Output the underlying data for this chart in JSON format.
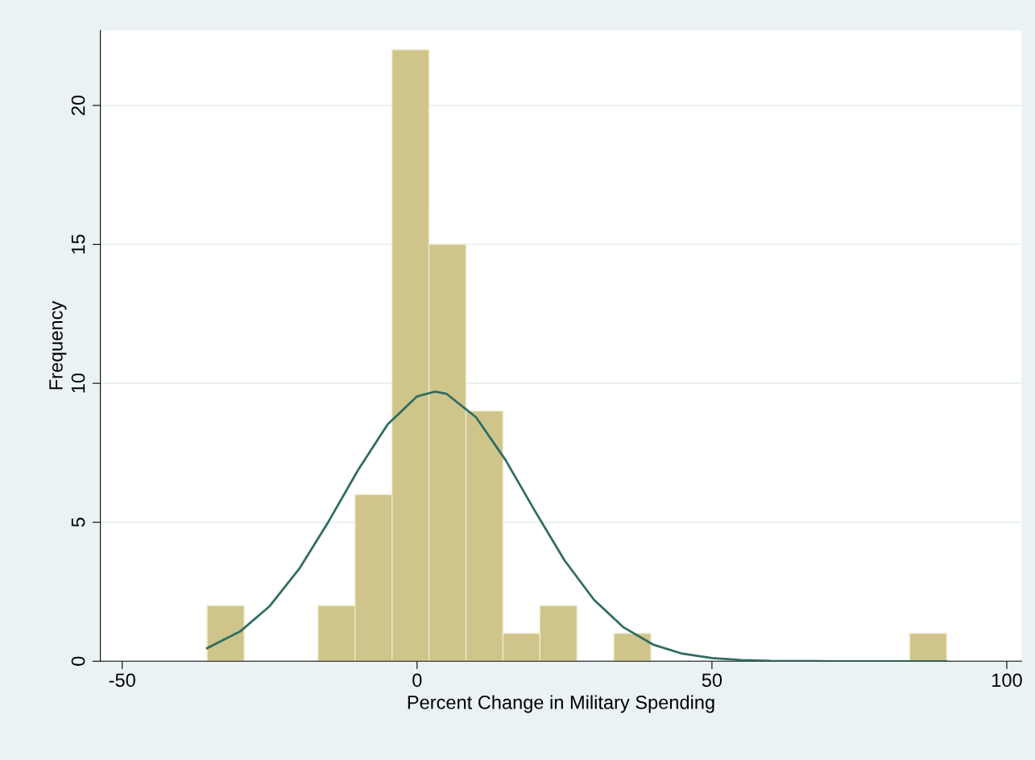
{
  "chart_data": {
    "type": "histogram",
    "xlabel": "Percent Change in Military Spending",
    "ylabel": "Frequency",
    "series": [
      {
        "color": "#cfc48a",
        "bins": [
          -35.6,
          -29.33,
          -23.06,
          -16.79,
          -10.52,
          -4.25,
          2.02,
          8.29,
          14.56,
          20.83,
          27.1,
          33.37,
          39.64,
          45.91,
          52.18,
          58.45,
          64.72,
          70.99,
          77.26,
          83.53,
          89.8
        ],
        "values": [
          2,
          0,
          0,
          2,
          6,
          22,
          15,
          9,
          1,
          2,
          0,
          1,
          0,
          0,
          0,
          0,
          0,
          0,
          0,
          1
        ]
      },
      {
        "type": "line",
        "color": "#2f6d63",
        "x": [
          -35.6,
          -30,
          -25,
          -20,
          -15,
          -10,
          -5,
          0,
          3,
          5,
          10,
          15,
          20,
          25,
          30,
          35,
          40,
          45,
          50,
          55,
          60,
          70,
          80,
          89.8
        ],
        "values": [
          0.47,
          1.07,
          1.98,
          3.32,
          5.03,
          6.88,
          8.52,
          9.53,
          9.7,
          9.62,
          8.78,
          7.24,
          5.4,
          3.63,
          2.21,
          1.22,
          0.6,
          0.27,
          0.11,
          0.04,
          0.01,
          0,
          0,
          0
        ]
      }
    ],
    "xlim": [
      -53.7,
      102.5
    ],
    "ylim": [
      0,
      22.7
    ],
    "xticks": [
      -50,
      0,
      50,
      100
    ],
    "yticks": [
      0,
      5,
      10,
      15,
      20
    ],
    "grid": "y",
    "legend": false
  }
}
